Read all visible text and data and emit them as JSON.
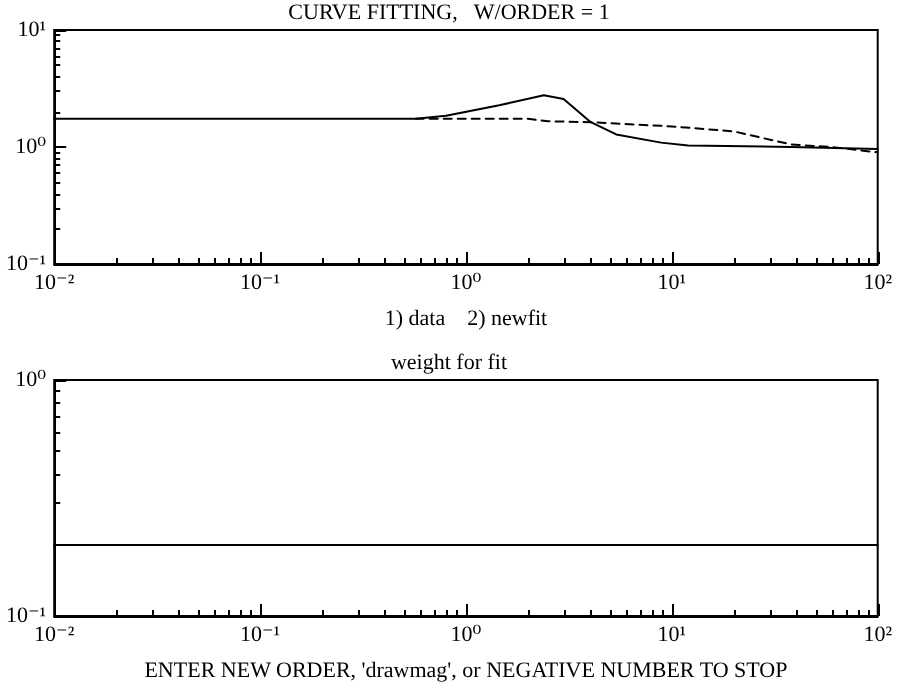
{
  "chart_data": [
    {
      "type": "line",
      "title": "CURVE FITTING,   W/ORDER = 1",
      "xlabel": "1) data    2) newfit",
      "log": "xy",
      "grid": false,
      "marker": "none",
      "xlim": [
        0.01,
        100
      ],
      "xticks": [
        {
          "value": 0.01,
          "label": "10⁻²"
        },
        {
          "value": 0.1,
          "label": "10⁻¹"
        },
        {
          "value": 1,
          "label": "10⁰"
        },
        {
          "value": 10,
          "label": "10¹"
        },
        {
          "value": 100,
          "label": "10²"
        }
      ],
      "ylim": [
        0.1,
        10
      ],
      "yticks": [
        {
          "value": 0.1,
          "label": "10⁻¹"
        },
        {
          "value": 1,
          "label": "10⁰"
        },
        {
          "value": 10,
          "label": "10¹"
        }
      ],
      "series": [
        {
          "color": "#000000",
          "line_style": "solid",
          "x": [
            0.01,
            0.57,
            0.8,
            1.45,
            2.39,
            2.98,
            4.04,
            5.37,
            8.87,
            12,
            38,
            100
          ],
          "values": [
            1.74,
            1.74,
            1.85,
            2.27,
            2.77,
            2.57,
            1.63,
            1.28,
            1.09,
            1.03,
            1.0,
            0.96
          ]
        },
        {
          "color": "#000000",
          "line_style": "dashed",
          "x": [
            0.57,
            2,
            2.5,
            4.04,
            10,
            20,
            38,
            60,
            100
          ],
          "values": [
            1.74,
            1.74,
            1.66,
            1.63,
            1.5,
            1.36,
            1.05,
            1.0,
            0.9
          ]
        }
      ]
    },
    {
      "type": "line",
      "title": "weight for fit",
      "xlabel": "ENTER NEW ORDER, 'drawmag', or NEGATIVE NUMBER TO STOP",
      "log": "xy",
      "grid": false,
      "marker": "none",
      "xlim": [
        0.01,
        100
      ],
      "xticks": [
        {
          "value": 0.01,
          "label": "10⁻²"
        },
        {
          "value": 0.1,
          "label": "10⁻¹"
        },
        {
          "value": 1,
          "label": "10⁰"
        },
        {
          "value": 10,
          "label": "10¹"
        },
        {
          "value": 100,
          "label": "10²"
        }
      ],
      "ylim": [
        0.1,
        1
      ],
      "yticks": [
        {
          "value": 0.1,
          "label": "10⁻¹"
        },
        {
          "value": 1,
          "label": "10⁰"
        }
      ],
      "series": [
        {
          "color": "#000000",
          "line_style": "solid",
          "x": [
            0.01,
            100
          ],
          "values": [
            0.2,
            0.2
          ]
        }
      ]
    }
  ]
}
